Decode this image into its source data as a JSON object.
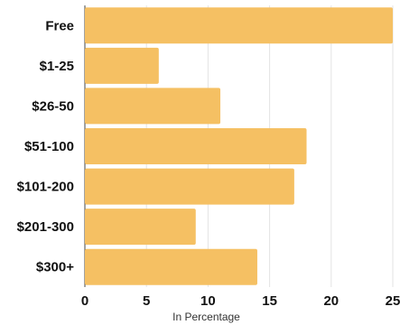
{
  "chart_data": {
    "type": "bar",
    "orientation": "horizontal",
    "categories": [
      "Free",
      "$1-25",
      "$26-50",
      "$51-100",
      "$101-200",
      "$201-300",
      "$300+"
    ],
    "values": [
      25,
      6,
      11,
      18,
      17,
      9,
      14
    ],
    "xticks": [
      "0",
      "5",
      "10",
      "15",
      "20",
      "25"
    ],
    "xlabel": "In Percentage",
    "xlim": [
      0,
      25
    ],
    "grid": true,
    "bar_color": "#f5c063"
  }
}
